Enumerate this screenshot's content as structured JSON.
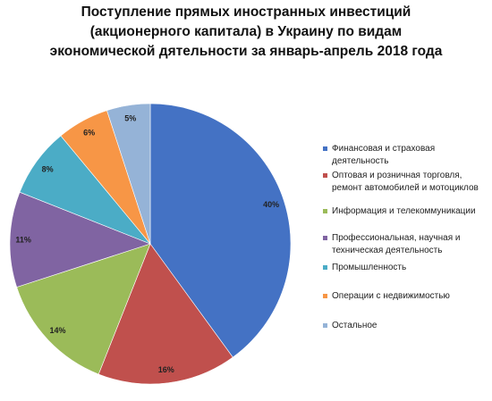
{
  "chart_data": {
    "type": "pie",
    "title_lines": [
      "Поступление прямых иностранных инвестиций",
      "(акционерного капитала) в Украину по видам",
      "экономической дятельности за январь-апрель 2018 года"
    ],
    "unit": "%",
    "slices": [
      {
        "name": "Финансовая и страховая деятельность",
        "value": 40,
        "label": "40%",
        "color": "#4472c4"
      },
      {
        "name": "Оптовая и розничная торговля, ремонт автомобилей и мотоциклов",
        "value": 16,
        "label": "16%",
        "color": "#c0504d"
      },
      {
        "name": "Информация и телекоммуникации",
        "value": 14,
        "label": "14%",
        "color": "#9bbb59"
      },
      {
        "name": "Профессиональная, научная и техническая деятельность",
        "value": 11,
        "label": "11%",
        "color": "#8064a2"
      },
      {
        "name": "Промышленность",
        "value": 8,
        "label": "8%",
        "color": "#4bacc6"
      },
      {
        "name": "Операции с недвижимостью",
        "value": 6,
        "label": "6%",
        "color": "#f79646"
      },
      {
        "name": "Остальное",
        "value": 5,
        "label": "5%",
        "color": "#95b3d7"
      }
    ],
    "start": "12 o'clock",
    "direction": "clockwise",
    "legend_position": "right"
  }
}
